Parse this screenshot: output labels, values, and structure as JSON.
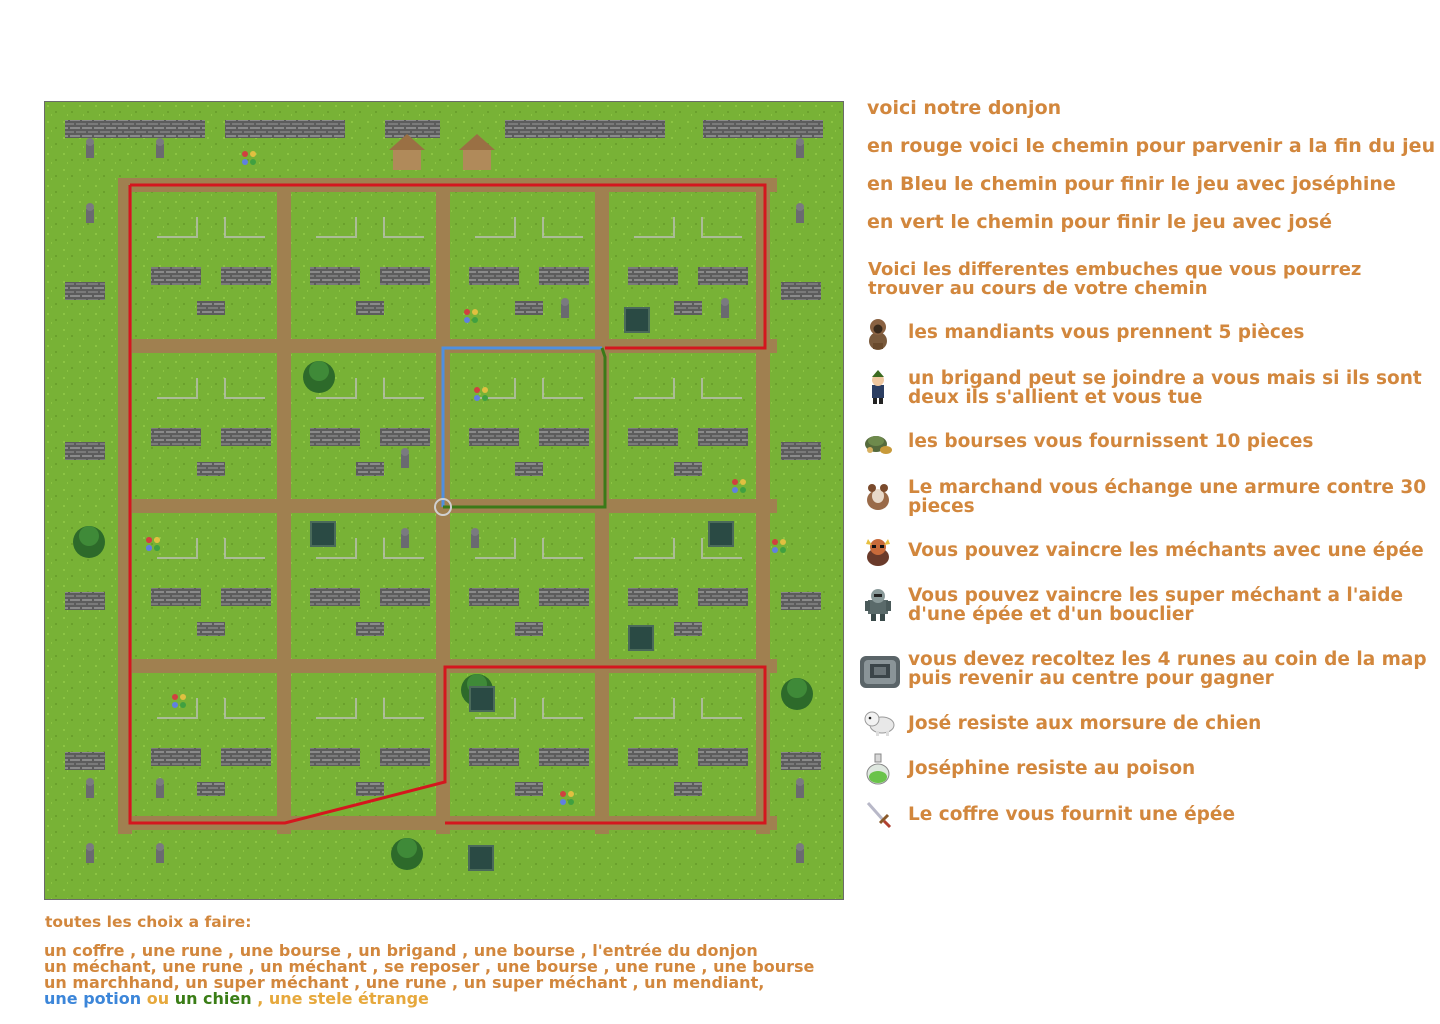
{
  "intro": {
    "title": "voici notre donjon",
    "red_path": "en rouge voici le chemin pour parvenir a la fin du jeu",
    "blue_path": "en Bleu le chemin pour finir le jeu avec joséphine",
    "green_path": "en vert le chemin pour finir le jeu avec josé"
  },
  "legend": {
    "title_line1": "Voici les differentes embuches que vous pourrez",
    "title_line2": "trouver au cours de votre chemin",
    "items": [
      {
        "icon": "beggar-icon",
        "lines": [
          "les mandiants vous prennent 5 pièces"
        ]
      },
      {
        "icon": "brigand-icon",
        "lines": [
          "un brigand peut se joindre a vous mais si ils sont",
          "deux ils s'allient et vous tue"
        ]
      },
      {
        "icon": "purse-icon",
        "lines": [
          "les bourses vous fournissent 10 pieces"
        ]
      },
      {
        "icon": "merchant-icon",
        "lines": [
          "Le marchand vous échange une armure contre 30",
          "pieces"
        ]
      },
      {
        "icon": "villain-icon",
        "lines": [
          "Vous pouvez vaincre les méchants avec une épée"
        ]
      },
      {
        "icon": "super-villain-icon",
        "lines": [
          "Vous pouvez vaincre les super méchant a l'aide",
          "d'une épée et d'un bouclier"
        ]
      },
      {
        "icon": "rune-stele-icon",
        "lines": [
          "vous devez recoltez les 4 runes au coin de la map",
          "puis revenir au centre pour gagner"
        ]
      },
      {
        "icon": "dog-icon",
        "lines": [
          "José resiste aux morsure de chien"
        ]
      },
      {
        "icon": "potion-icon",
        "lines": [
          "Joséphine resiste au poison"
        ]
      },
      {
        "icon": "sword-icon",
        "lines": [
          "Le coffre vous fournit une épée"
        ]
      }
    ]
  },
  "choices": {
    "title": "toutes les choix a faire:",
    "line1": "un coffre , une rune , une bourse , un brigand , une bourse , l'entrée du donjon",
    "line2": "un méchant, une rune , un méchant , se reposer , une bourse , une rune , une bourse",
    "line3": "un marchhand, un super méchant , une rune , un super méchant , un mendiant,",
    "line4_blue": "une potion",
    "line4_sep1": " ou ",
    "line4_green": "un chien",
    "line4_sep2": " , une stele étrange"
  },
  "colors": {
    "text": "#d2873d",
    "red_path": "#d4161e",
    "blue_path": "#4f8fe0",
    "green_path": "#3b7a18",
    "grass": "#78b236",
    "dirt": "#a08050",
    "stone_wall": "#6e6e6e"
  }
}
